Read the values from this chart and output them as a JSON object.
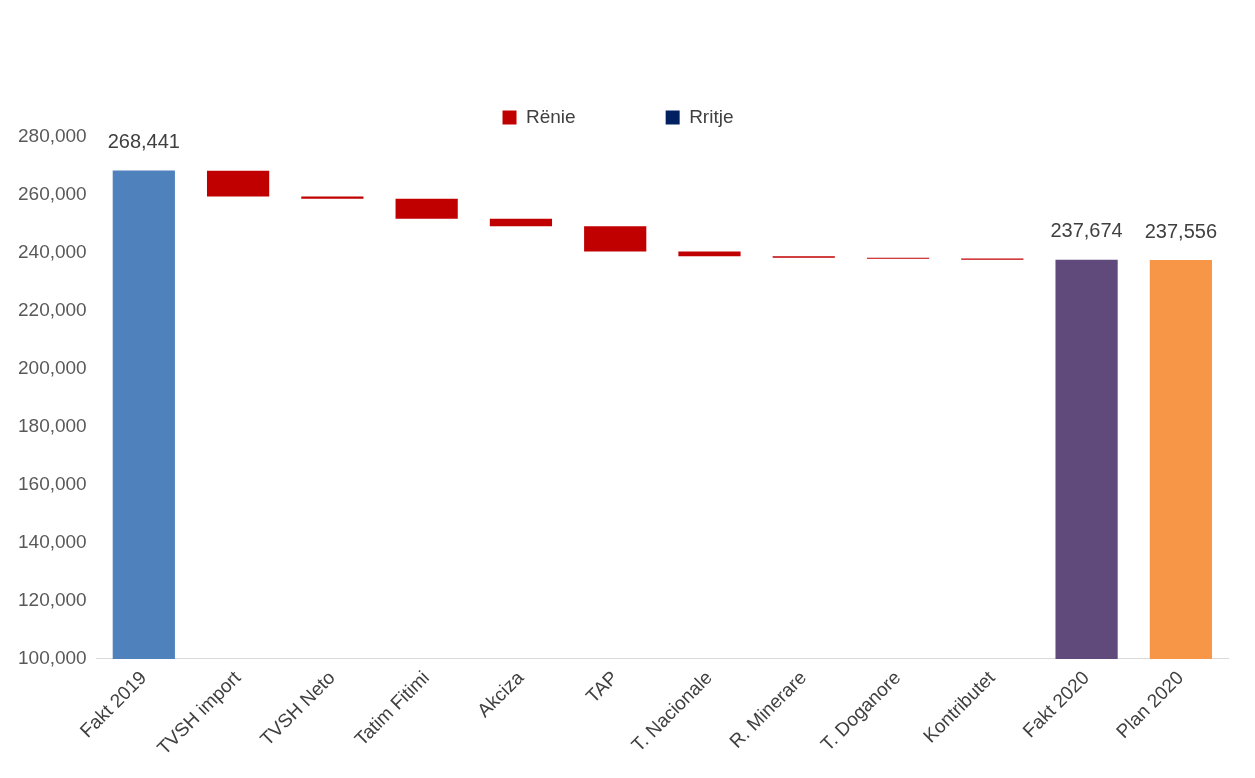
{
  "chart_data": {
    "type": "bar",
    "categories": [
      "Fakt 2019",
      "TVSH import",
      "TVSH Neto",
      "Tatim Fitimi",
      "Akciza",
      "TAP",
      "T. Nacionale",
      "R. Minerare",
      "T. Doganore",
      "Kontributet",
      "Fakt 2020",
      "Plan 2020"
    ],
    "series": [
      {
        "colors": [
          "#4f81bd",
          null,
          null,
          null,
          null,
          null,
          null,
          null,
          null,
          null,
          "#604a7b",
          "#f79646"
        ],
        "values": [
          268441,
          null,
          null,
          null,
          null,
          null,
          null,
          null,
          null,
          null,
          237674,
          237556
        ],
        "value_labels": [
          "268,441",
          null,
          null,
          null,
          null,
          null,
          null,
          null,
          null,
          null,
          "237,674",
          "237,556"
        ]
      },
      {
        "name": "Rënie",
        "color": "#c00000",
        "base": [
          null,
          259500,
          258700,
          251800,
          249200,
          240500,
          238900,
          238400,
          238000,
          237700,
          null,
          null
        ],
        "values": [
          null,
          8900,
          800,
          6900,
          2600,
          8700,
          1600,
          500,
          400,
          400,
          null,
          null
        ]
      },
      {
        "name": "Rritje",
        "color": "#002060",
        "values": [
          null,
          null,
          null,
          null,
          null,
          null,
          null,
          null,
          null,
          null,
          null,
          null
        ]
      }
    ],
    "ylim": [
      100000,
      280000
    ],
    "yticks": [
      {
        "value": 100000,
        "label": "100,000"
      },
      {
        "value": 120000,
        "label": "120,000"
      },
      {
        "value": 140000,
        "label": "140,000"
      },
      {
        "value": 160000,
        "label": "160,000"
      },
      {
        "value": 180000,
        "label": "180,000"
      },
      {
        "value": 200000,
        "label": "200,000"
      },
      {
        "value": 220000,
        "label": "220,000"
      },
      {
        "value": 240000,
        "label": "240,000"
      },
      {
        "value": 260000,
        "label": "260,000"
      },
      {
        "value": 280000,
        "label": "280,000"
      }
    ],
    "grid": false,
    "legend": "top"
  }
}
